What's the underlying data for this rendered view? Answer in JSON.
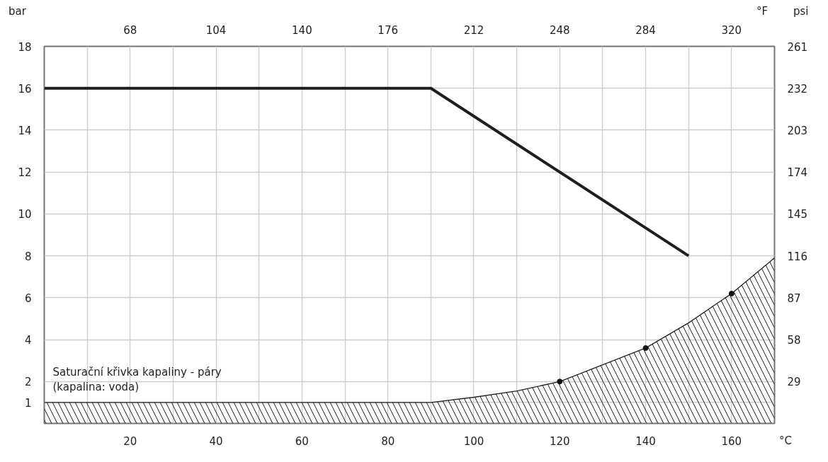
{
  "chart_data": {
    "type": "line",
    "xlabel": "°C",
    "x2label": "°F",
    "ylabel": "bar",
    "y2label": "psi",
    "xlim": [
      0,
      170
    ],
    "xticks": [
      {
        "value": 10,
        "label": null
      },
      20,
      {
        "value": 30,
        "label": null
      },
      40,
      {
        "value": 50,
        "label": null
      },
      60,
      {
        "value": 70,
        "label": null
      },
      80,
      {
        "value": 90,
        "label": null
      },
      100,
      {
        "value": 110,
        "label": null
      },
      120,
      {
        "value": 130,
        "label": null
      },
      140,
      {
        "value": 150,
        "label": null
      },
      160
    ],
    "x2lim": [
      32,
      338
    ],
    "x2ticks": [
      68,
      104,
      140,
      176,
      212,
      248,
      284,
      320
    ],
    "ylim": [
      0,
      18
    ],
    "yticks": [
      1,
      2,
      4,
      6,
      8,
      10,
      12,
      14,
      16,
      18
    ],
    "y2lim": [
      0,
      261
    ],
    "y2ticks": [
      29,
      58,
      87,
      116,
      145,
      174,
      203,
      232,
      261
    ],
    "grid": true,
    "series": [
      {
        "type": "line",
        "color": "#1e1e1e",
        "x": [
          0,
          90,
          150
        ],
        "values": [
          16,
          16,
          8
        ]
      },
      {
        "type": "area",
        "color": "#222222",
        "x": [
          0,
          90,
          100,
          110,
          120,
          130,
          140,
          150,
          160,
          170
        ],
        "values": [
          1,
          1,
          1.25,
          1.55,
          2,
          2.8,
          3.6,
          4.8,
          6.2,
          7.9
        ]
      },
      {
        "type": "scatter",
        "color": "#111111",
        "marker": "circle",
        "x": [
          120,
          140,
          160
        ],
        "values": [
          2,
          3.6,
          6.2
        ]
      }
    ],
    "annotations": [
      "Saturační křivka kapaliny - páry\n(kapalina: voda)"
    ]
  }
}
